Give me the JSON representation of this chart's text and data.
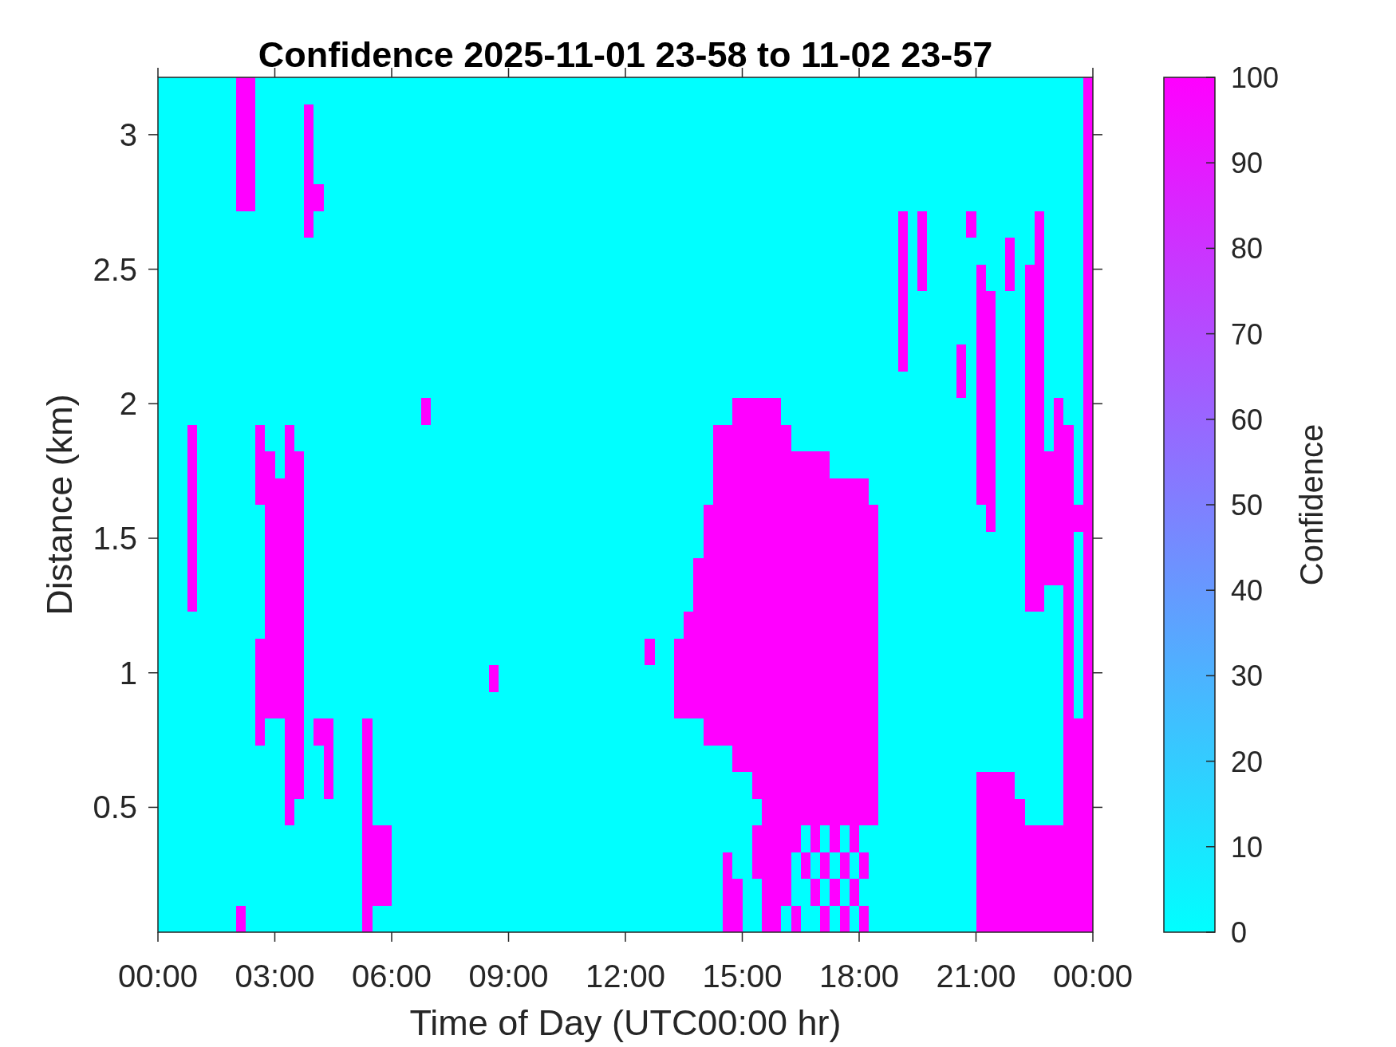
{
  "chart_data": {
    "type": "heatmap",
    "title": "Confidence 2025-11-01 23-58 to 11-02 23-57",
    "xlabel": "Time of Day (UTC00:00 hr)",
    "ylabel": "Distance (km)",
    "clabel": "Confidence",
    "x": [
      0.125,
      0.375,
      0.625,
      0.875,
      1.125,
      1.375,
      1.625,
      1.875,
      2.125,
      2.375,
      2.625,
      2.875,
      3.125,
      3.375,
      3.625,
      3.875,
      4.125,
      4.375,
      4.625,
      4.875,
      5.125,
      5.375,
      5.625,
      5.875,
      6.125,
      6.375,
      6.625,
      6.875,
      7.125,
      7.375,
      7.625,
      7.875,
      8.125,
      8.375,
      8.625,
      8.875,
      9.125,
      9.375,
      9.625,
      9.875,
      10.125,
      10.375,
      10.625,
      10.875,
      11.125,
      11.375,
      11.625,
      11.875,
      12.125,
      12.375,
      12.625,
      12.875,
      13.125,
      13.375,
      13.625,
      13.875,
      14.125,
      14.375,
      14.625,
      14.875,
      15.125,
      15.375,
      15.625,
      15.875,
      16.125,
      16.375,
      16.625,
      16.875,
      17.125,
      17.375,
      17.625,
      17.875,
      18.125,
      18.375,
      18.625,
      18.875,
      19.125,
      19.375,
      19.625,
      19.875,
      20.125,
      20.375,
      20.625,
      20.875,
      21.125,
      21.375,
      21.625,
      21.875,
      22.125,
      22.375,
      22.625,
      22.875,
      23.125,
      23.375,
      23.625,
      23.875
    ],
    "cells": [
      [
        0,
        0,
        0,
        0,
        0,
        0,
        0,
        0,
        100,
        100,
        0,
        0,
        0,
        0,
        0,
        0,
        0,
        0,
        0,
        0,
        0,
        0,
        0,
        0,
        0,
        0,
        0,
        0,
        0,
        0,
        0,
        0,
        0,
        0,
        0,
        0,
        0,
        0,
        0,
        0,
        0,
        0,
        0,
        0,
        0,
        0,
        0,
        0,
        0,
        0,
        0,
        0,
        0,
        0,
        0,
        0,
        0,
        0,
        0,
        0,
        0,
        0,
        0,
        0,
        0,
        0,
        0,
        0,
        0,
        0,
        0,
        0,
        0,
        0,
        0,
        0,
        0,
        0,
        0,
        0,
        0,
        0,
        0,
        0,
        0,
        0,
        0,
        0,
        0,
        0,
        0,
        0,
        0,
        0,
        0,
        100
      ],
      [
        0,
        0,
        0,
        0,
        0,
        0,
        0,
        0,
        100,
        100,
        0,
        0,
        0,
        0,
        0,
        100,
        0,
        0,
        0,
        0,
        0,
        0,
        0,
        0,
        0,
        0,
        0,
        0,
        0,
        0,
        0,
        0,
        0,
        0,
        0,
        0,
        0,
        0,
        0,
        0,
        0,
        0,
        0,
        0,
        0,
        0,
        0,
        0,
        0,
        0,
        0,
        0,
        0,
        0,
        0,
        0,
        0,
        0,
        0,
        0,
        0,
        0,
        0,
        0,
        0,
        0,
        0,
        0,
        0,
        0,
        0,
        0,
        0,
        0,
        0,
        0,
        0,
        0,
        0,
        0,
        0,
        0,
        0,
        0,
        0,
        0,
        0,
        0,
        0,
        0,
        0,
        0,
        0,
        0,
        0,
        100
      ],
      [
        0,
        0,
        0,
        0,
        0,
        0,
        0,
        0,
        100,
        100,
        0,
        0,
        0,
        0,
        0,
        100,
        0,
        0,
        0,
        0,
        0,
        0,
        0,
        0,
        0,
        0,
        0,
        0,
        0,
        0,
        0,
        0,
        0,
        0,
        0,
        0,
        0,
        0,
        0,
        0,
        0,
        0,
        0,
        0,
        0,
        0,
        0,
        0,
        0,
        0,
        0,
        0,
        0,
        0,
        0,
        0,
        0,
        0,
        0,
        0,
        0,
        0,
        0,
        0,
        0,
        0,
        0,
        0,
        0,
        0,
        0,
        0,
        0,
        0,
        0,
        0,
        0,
        0,
        0,
        0,
        0,
        0,
        0,
        0,
        0,
        0,
        0,
        0,
        0,
        0,
        0,
        0,
        0,
        0,
        0,
        100
      ],
      [
        0,
        0,
        0,
        0,
        0,
        0,
        0,
        0,
        100,
        100,
        0,
        0,
        0,
        0,
        0,
        100,
        0,
        0,
        0,
        0,
        0,
        0,
        0,
        0,
        0,
        0,
        0,
        0,
        0,
        0,
        0,
        0,
        0,
        0,
        0,
        0,
        0,
        0,
        0,
        0,
        0,
        0,
        0,
        0,
        0,
        0,
        0,
        0,
        0,
        0,
        0,
        0,
        0,
        0,
        0,
        0,
        0,
        0,
        0,
        0,
        0,
        0,
        0,
        0,
        0,
        0,
        0,
        0,
        0,
        0,
        0,
        0,
        0,
        0,
        0,
        0,
        0,
        0,
        0,
        0,
        0,
        0,
        0,
        0,
        0,
        0,
        0,
        0,
        0,
        0,
        0,
        0,
        0,
        0,
        0,
        100
      ],
      [
        0,
        0,
        0,
        0,
        0,
        0,
        0,
        0,
        100,
        100,
        0,
        0,
        0,
        0,
        0,
        100,
        100,
        0,
        0,
        0,
        0,
        0,
        0,
        0,
        0,
        0,
        0,
        0,
        0,
        0,
        0,
        0,
        0,
        0,
        0,
        0,
        0,
        0,
        0,
        0,
        0,
        0,
        0,
        0,
        0,
        0,
        0,
        0,
        0,
        0,
        0,
        0,
        0,
        0,
        0,
        0,
        0,
        0,
        0,
        0,
        0,
        0,
        0,
        0,
        0,
        0,
        0,
        0,
        0,
        0,
        0,
        0,
        0,
        0,
        0,
        0,
        0,
        0,
        0,
        0,
        0,
        0,
        0,
        0,
        0,
        0,
        0,
        0,
        0,
        0,
        0,
        0,
        0,
        0,
        0,
        100
      ],
      [
        0,
        0,
        0,
        0,
        0,
        0,
        0,
        0,
        0,
        0,
        0,
        0,
        0,
        0,
        0,
        100,
        0,
        0,
        0,
        0,
        0,
        0,
        0,
        0,
        0,
        0,
        0,
        0,
        0,
        0,
        0,
        0,
        0,
        0,
        0,
        0,
        0,
        0,
        0,
        0,
        0,
        0,
        0,
        0,
        0,
        0,
        0,
        0,
        0,
        0,
        0,
        0,
        0,
        0,
        0,
        0,
        0,
        0,
        0,
        0,
        0,
        0,
        0,
        0,
        0,
        0,
        0,
        0,
        0,
        0,
        0,
        0,
        0,
        0,
        0,
        0,
        100,
        0,
        100,
        0,
        0,
        0,
        0,
        100,
        0,
        0,
        0,
        0,
        0,
        0,
        100,
        0,
        0,
        0,
        0,
        100
      ],
      [
        0,
        0,
        0,
        0,
        0,
        0,
        0,
        0,
        0,
        0,
        0,
        0,
        0,
        0,
        0,
        0,
        0,
        0,
        0,
        0,
        0,
        0,
        0,
        0,
        0,
        0,
        0,
        0,
        0,
        0,
        0,
        0,
        0,
        0,
        0,
        0,
        0,
        0,
        0,
        0,
        0,
        0,
        0,
        0,
        0,
        0,
        0,
        0,
        0,
        0,
        0,
        0,
        0,
        0,
        0,
        0,
        0,
        0,
        0,
        0,
        0,
        0,
        0,
        0,
        0,
        0,
        0,
        0,
        0,
        0,
        0,
        0,
        0,
        0,
        0,
        0,
        100,
        0,
        100,
        0,
        0,
        0,
        0,
        0,
        0,
        0,
        0,
        100,
        0,
        0,
        100,
        0,
        0,
        0,
        0,
        100
      ],
      [
        0,
        0,
        0,
        0,
        0,
        0,
        0,
        0,
        0,
        0,
        0,
        0,
        0,
        0,
        0,
        0,
        0,
        0,
        0,
        0,
        0,
        0,
        0,
        0,
        0,
        0,
        0,
        0,
        0,
        0,
        0,
        0,
        0,
        0,
        0,
        0,
        0,
        0,
        0,
        0,
        0,
        0,
        0,
        0,
        0,
        0,
        0,
        0,
        0,
        0,
        0,
        0,
        0,
        0,
        0,
        0,
        0,
        0,
        0,
        0,
        0,
        0,
        0,
        0,
        0,
        0,
        0,
        0,
        0,
        0,
        0,
        0,
        0,
        0,
        0,
        0,
        100,
        0,
        100,
        0,
        0,
        0,
        0,
        0,
        100,
        0,
        0,
        100,
        0,
        100,
        100,
        0,
        0,
        0,
        0,
        100
      ],
      [
        0,
        0,
        0,
        0,
        0,
        0,
        0,
        0,
        0,
        0,
        0,
        0,
        0,
        0,
        0,
        0,
        0,
        0,
        0,
        0,
        0,
        0,
        0,
        0,
        0,
        0,
        0,
        0,
        0,
        0,
        0,
        0,
        0,
        0,
        0,
        0,
        0,
        0,
        0,
        0,
        0,
        0,
        0,
        0,
        0,
        0,
        0,
        0,
        0,
        0,
        0,
        0,
        0,
        0,
        0,
        0,
        0,
        0,
        0,
        0,
        0,
        0,
        0,
        0,
        0,
        0,
        0,
        0,
        0,
        0,
        0,
        0,
        0,
        0,
        0,
        0,
        100,
        0,
        0,
        0,
        0,
        0,
        0,
        0,
        100,
        100,
        0,
        0,
        0,
        100,
        100,
        0,
        0,
        0,
        0,
        100
      ],
      [
        0,
        0,
        0,
        0,
        0,
        0,
        0,
        0,
        0,
        0,
        0,
        0,
        0,
        0,
        0,
        0,
        0,
        0,
        0,
        0,
        0,
        0,
        0,
        0,
        0,
        0,
        0,
        0,
        0,
        0,
        0,
        0,
        0,
        0,
        0,
        0,
        0,
        0,
        0,
        0,
        0,
        0,
        0,
        0,
        0,
        0,
        0,
        0,
        0,
        0,
        0,
        0,
        0,
        0,
        0,
        0,
        0,
        0,
        0,
        0,
        0,
        0,
        0,
        0,
        0,
        0,
        0,
        0,
        0,
        0,
        0,
        0,
        0,
        0,
        0,
        0,
        100,
        0,
        0,
        0,
        0,
        0,
        0,
        0,
        100,
        100,
        0,
        0,
        0,
        100,
        100,
        0,
        0,
        0,
        0,
        100
      ],
      [
        0,
        0,
        0,
        0,
        0,
        0,
        0,
        0,
        0,
        0,
        0,
        0,
        0,
        0,
        0,
        0,
        0,
        0,
        0,
        0,
        0,
        0,
        0,
        0,
        0,
        0,
        0,
        0,
        0,
        0,
        0,
        0,
        0,
        0,
        0,
        0,
        0,
        0,
        0,
        0,
        0,
        0,
        0,
        0,
        0,
        0,
        0,
        0,
        0,
        0,
        0,
        0,
        0,
        0,
        0,
        0,
        0,
        0,
        0,
        0,
        0,
        0,
        0,
        0,
        0,
        0,
        0,
        0,
        0,
        0,
        0,
        0,
        0,
        0,
        0,
        0,
        100,
        0,
        0,
        0,
        0,
        0,
        100,
        0,
        100,
        100,
        0,
        0,
        0,
        100,
        100,
        0,
        0,
        0,
        0,
        100
      ],
      [
        0,
        0,
        0,
        0,
        0,
        0,
        0,
        0,
        0,
        0,
        0,
        0,
        0,
        0,
        0,
        0,
        0,
        0,
        0,
        0,
        0,
        0,
        0,
        0,
        0,
        0,
        0,
        0,
        0,
        0,
        0,
        0,
        0,
        0,
        0,
        0,
        0,
        0,
        0,
        0,
        0,
        0,
        0,
        0,
        0,
        0,
        0,
        0,
        0,
        0,
        0,
        0,
        0,
        0,
        0,
        0,
        0,
        0,
        0,
        0,
        0,
        0,
        0,
        0,
        0,
        0,
        0,
        0,
        0,
        0,
        0,
        0,
        0,
        0,
        0,
        0,
        0,
        0,
        0,
        0,
        0,
        0,
        100,
        0,
        100,
        100,
        0,
        0,
        0,
        100,
        100,
        0,
        0,
        0,
        0,
        100
      ],
      [
        0,
        0,
        0,
        0,
        0,
        0,
        0,
        0,
        0,
        0,
        0,
        0,
        0,
        0,
        0,
        0,
        0,
        0,
        0,
        0,
        0,
        0,
        0,
        0,
        0,
        0,
        0,
        100,
        0,
        0,
        0,
        0,
        0,
        0,
        0,
        0,
        0,
        0,
        0,
        0,
        0,
        0,
        0,
        0,
        0,
        0,
        0,
        0,
        0,
        0,
        0,
        0,
        0,
        0,
        0,
        0,
        0,
        0,
        0,
        100,
        100,
        100,
        100,
        100,
        0,
        0,
        0,
        0,
        0,
        0,
        0,
        0,
        0,
        0,
        0,
        0,
        0,
        0,
        0,
        0,
        0,
        0,
        0,
        0,
        100,
        100,
        0,
        0,
        0,
        100,
        100,
        0,
        100,
        0,
        0,
        100
      ],
      [
        0,
        0,
        0,
        100,
        0,
        0,
        0,
        0,
        0,
        0,
        100,
        0,
        0,
        100,
        0,
        0,
        0,
        0,
        0,
        0,
        0,
        0,
        0,
        0,
        0,
        0,
        0,
        0,
        0,
        0,
        0,
        0,
        0,
        0,
        0,
        0,
        0,
        0,
        0,
        0,
        0,
        0,
        0,
        0,
        0,
        0,
        0,
        0,
        0,
        0,
        0,
        0,
        0,
        0,
        0,
        0,
        0,
        100,
        100,
        100,
        100,
        100,
        100,
        100,
        100,
        0,
        0,
        0,
        0,
        0,
        0,
        0,
        0,
        0,
        0,
        0,
        0,
        0,
        0,
        0,
        0,
        0,
        0,
        0,
        100,
        100,
        0,
        0,
        0,
        100,
        100,
        0,
        100,
        100,
        0,
        100
      ],
      [
        0,
        0,
        0,
        100,
        0,
        0,
        0,
        0,
        0,
        0,
        100,
        100,
        0,
        100,
        100,
        0,
        0,
        0,
        0,
        0,
        0,
        0,
        0,
        0,
        0,
        0,
        0,
        0,
        0,
        0,
        0,
        0,
        0,
        0,
        0,
        0,
        0,
        0,
        0,
        0,
        0,
        0,
        0,
        0,
        0,
        0,
        0,
        0,
        0,
        0,
        0,
        0,
        0,
        0,
        0,
        0,
        0,
        100,
        100,
        100,
        100,
        100,
        100,
        100,
        100,
        100,
        100,
        100,
        100,
        0,
        0,
        0,
        0,
        0,
        0,
        0,
        0,
        0,
        0,
        0,
        0,
        0,
        0,
        0,
        100,
        100,
        0,
        0,
        0,
        100,
        100,
        100,
        100,
        100,
        0,
        100
      ],
      [
        0,
        0,
        0,
        100,
        0,
        0,
        0,
        0,
        0,
        0,
        100,
        100,
        100,
        100,
        100,
        0,
        0,
        0,
        0,
        0,
        0,
        0,
        0,
        0,
        0,
        0,
        0,
        0,
        0,
        0,
        0,
        0,
        0,
        0,
        0,
        0,
        0,
        0,
        0,
        0,
        0,
        0,
        0,
        0,
        0,
        0,
        0,
        0,
        0,
        0,
        0,
        0,
        0,
        0,
        0,
        0,
        0,
        100,
        100,
        100,
        100,
        100,
        100,
        100,
        100,
        100,
        100,
        100,
        100,
        100,
        100,
        100,
        100,
        0,
        0,
        0,
        0,
        0,
        0,
        0,
        0,
        0,
        0,
        0,
        100,
        100,
        0,
        0,
        0,
        100,
        100,
        100,
        100,
        100,
        0,
        100
      ],
      [
        0,
        0,
        0,
        100,
        0,
        0,
        0,
        0,
        0,
        0,
        0,
        100,
        100,
        100,
        100,
        0,
        0,
        0,
        0,
        0,
        0,
        0,
        0,
        0,
        0,
        0,
        0,
        0,
        0,
        0,
        0,
        0,
        0,
        0,
        0,
        0,
        0,
        0,
        0,
        0,
        0,
        0,
        0,
        0,
        0,
        0,
        0,
        0,
        0,
        0,
        0,
        0,
        0,
        0,
        0,
        0,
        100,
        100,
        100,
        100,
        100,
        100,
        100,
        100,
        100,
        100,
        100,
        100,
        100,
        100,
        100,
        100,
        100,
        100,
        0,
        0,
        0,
        0,
        0,
        0,
        0,
        0,
        0,
        0,
        0,
        100,
        0,
        0,
        0,
        100,
        100,
        100,
        100,
        100,
        100,
        100
      ],
      [
        0,
        0,
        0,
        100,
        0,
        0,
        0,
        0,
        0,
        0,
        0,
        100,
        100,
        100,
        100,
        0,
        0,
        0,
        0,
        0,
        0,
        0,
        0,
        0,
        0,
        0,
        0,
        0,
        0,
        0,
        0,
        0,
        0,
        0,
        0,
        0,
        0,
        0,
        0,
        0,
        0,
        0,
        0,
        0,
        0,
        0,
        0,
        0,
        0,
        0,
        0,
        0,
        0,
        0,
        0,
        0,
        100,
        100,
        100,
        100,
        100,
        100,
        100,
        100,
        100,
        100,
        100,
        100,
        100,
        100,
        100,
        100,
        100,
        100,
        0,
        0,
        0,
        0,
        0,
        0,
        0,
        0,
        0,
        0,
        0,
        0,
        0,
        0,
        0,
        100,
        100,
        100,
        100,
        100,
        0,
        100
      ],
      [
        0,
        0,
        0,
        100,
        0,
        0,
        0,
        0,
        0,
        0,
        0,
        100,
        100,
        100,
        100,
        0,
        0,
        0,
        0,
        0,
        0,
        0,
        0,
        0,
        0,
        0,
        0,
        0,
        0,
        0,
        0,
        0,
        0,
        0,
        0,
        0,
        0,
        0,
        0,
        0,
        0,
        0,
        0,
        0,
        0,
        0,
        0,
        0,
        0,
        0,
        0,
        0,
        0,
        0,
        0,
        100,
        100,
        100,
        100,
        100,
        100,
        100,
        100,
        100,
        100,
        100,
        100,
        100,
        100,
        100,
        100,
        100,
        100,
        100,
        0,
        0,
        0,
        0,
        0,
        0,
        0,
        0,
        0,
        0,
        0,
        0,
        0,
        0,
        0,
        100,
        100,
        100,
        100,
        100,
        0,
        100
      ],
      [
        0,
        0,
        0,
        100,
        0,
        0,
        0,
        0,
        0,
        0,
        0,
        100,
        100,
        100,
        100,
        0,
        0,
        0,
        0,
        0,
        0,
        0,
        0,
        0,
        0,
        0,
        0,
        0,
        0,
        0,
        0,
        0,
        0,
        0,
        0,
        0,
        0,
        0,
        0,
        0,
        0,
        0,
        0,
        0,
        0,
        0,
        0,
        0,
        0,
        0,
        0,
        0,
        0,
        0,
        0,
        100,
        100,
        100,
        100,
        100,
        100,
        100,
        100,
        100,
        100,
        100,
        100,
        100,
        100,
        100,
        100,
        100,
        100,
        100,
        0,
        0,
        0,
        0,
        0,
        0,
        0,
        0,
        0,
        0,
        0,
        0,
        0,
        0,
        0,
        100,
        100,
        0,
        0,
        100,
        0,
        100
      ],
      [
        0,
        0,
        0,
        0,
        0,
        0,
        0,
        0,
        0,
        0,
        0,
        100,
        100,
        100,
        100,
        0,
        0,
        0,
        0,
        0,
        0,
        0,
        0,
        0,
        0,
        0,
        0,
        0,
        0,
        0,
        0,
        0,
        0,
        0,
        0,
        0,
        0,
        0,
        0,
        0,
        0,
        0,
        0,
        0,
        0,
        0,
        0,
        0,
        0,
        0,
        0,
        0,
        0,
        0,
        100,
        100,
        100,
        100,
        100,
        100,
        100,
        100,
        100,
        100,
        100,
        100,
        100,
        100,
        100,
        100,
        100,
        100,
        100,
        100,
        0,
        0,
        0,
        0,
        0,
        0,
        0,
        0,
        0,
        0,
        0,
        0,
        0,
        0,
        0,
        0,
        0,
        0,
        0,
        100,
        0,
        100
      ],
      [
        0,
        0,
        0,
        0,
        0,
        0,
        0,
        0,
        0,
        0,
        100,
        100,
        100,
        100,
        100,
        0,
        0,
        0,
        0,
        0,
        0,
        0,
        0,
        0,
        0,
        0,
        0,
        0,
        0,
        0,
        0,
        0,
        0,
        0,
        0,
        0,
        0,
        0,
        0,
        0,
        0,
        0,
        0,
        0,
        0,
        0,
        0,
        0,
        0,
        0,
        100,
        0,
        0,
        100,
        100,
        100,
        100,
        100,
        100,
        100,
        100,
        100,
        100,
        100,
        100,
        100,
        100,
        100,
        100,
        100,
        100,
        100,
        100,
        100,
        0,
        0,
        0,
        0,
        0,
        0,
        0,
        0,
        0,
        0,
        0,
        0,
        0,
        0,
        0,
        0,
        0,
        0,
        0,
        100,
        0,
        100
      ],
      [
        0,
        0,
        0,
        0,
        0,
        0,
        0,
        0,
        0,
        0,
        100,
        100,
        100,
        100,
        100,
        0,
        0,
        0,
        0,
        0,
        0,
        0,
        0,
        0,
        0,
        0,
        0,
        0,
        0,
        0,
        0,
        0,
        0,
        0,
        100,
        0,
        0,
        0,
        0,
        0,
        0,
        0,
        0,
        0,
        0,
        0,
        0,
        0,
        0,
        0,
        0,
        0,
        0,
        100,
        100,
        100,
        100,
        100,
        100,
        100,
        100,
        100,
        100,
        100,
        100,
        100,
        100,
        100,
        100,
        100,
        100,
        100,
        100,
        100,
        0,
        0,
        0,
        0,
        0,
        0,
        0,
        0,
        0,
        0,
        0,
        0,
        0,
        0,
        0,
        0,
        0,
        0,
        0,
        100,
        0,
        100
      ],
      [
        0,
        0,
        0,
        0,
        0,
        0,
        0,
        0,
        0,
        0,
        100,
        100,
        100,
        100,
        100,
        0,
        0,
        0,
        0,
        0,
        0,
        0,
        0,
        0,
        0,
        0,
        0,
        0,
        0,
        0,
        0,
        0,
        0,
        0,
        0,
        0,
        0,
        0,
        0,
        0,
        0,
        0,
        0,
        0,
        0,
        0,
        0,
        0,
        0,
        0,
        0,
        0,
        0,
        100,
        100,
        100,
        100,
        100,
        100,
        100,
        100,
        100,
        100,
        100,
        100,
        100,
        100,
        100,
        100,
        100,
        100,
        100,
        100,
        100,
        0,
        0,
        0,
        0,
        0,
        0,
        0,
        0,
        0,
        0,
        0,
        0,
        0,
        0,
        0,
        0,
        0,
        0,
        0,
        100,
        0,
        100
      ],
      [
        0,
        0,
        0,
        0,
        0,
        0,
        0,
        0,
        0,
        0,
        100,
        0,
        0,
        100,
        100,
        0,
        100,
        100,
        0,
        0,
        0,
        100,
        0,
        0,
        0,
        0,
        0,
        0,
        0,
        0,
        0,
        0,
        0,
        0,
        0,
        0,
        0,
        0,
        0,
        0,
        0,
        0,
        0,
        0,
        0,
        0,
        0,
        0,
        0,
        0,
        0,
        0,
        0,
        0,
        0,
        0,
        100,
        100,
        100,
        100,
        100,
        100,
        100,
        100,
        100,
        100,
        100,
        100,
        100,
        100,
        100,
        100,
        100,
        100,
        0,
        0,
        0,
        0,
        0,
        0,
        0,
        0,
        0,
        0,
        0,
        0,
        0,
        0,
        0,
        0,
        0,
        0,
        0,
        100,
        100,
        100
      ],
      [
        0,
        0,
        0,
        0,
        0,
        0,
        0,
        0,
        0,
        0,
        0,
        0,
        0,
        100,
        100,
        0,
        0,
        100,
        0,
        0,
        0,
        100,
        0,
        0,
        0,
        0,
        0,
        0,
        0,
        0,
        0,
        0,
        0,
        0,
        0,
        0,
        0,
        0,
        0,
        0,
        0,
        0,
        0,
        0,
        0,
        0,
        0,
        0,
        0,
        0,
        0,
        0,
        0,
        0,
        0,
        0,
        0,
        0,
        0,
        100,
        100,
        100,
        100,
        100,
        100,
        100,
        100,
        100,
        100,
        100,
        100,
        100,
        100,
        100,
        0,
        0,
        0,
        0,
        0,
        0,
        0,
        0,
        0,
        0,
        0,
        0,
        0,
        0,
        0,
        0,
        0,
        0,
        0,
        100,
        100,
        100
      ],
      [
        0,
        0,
        0,
        0,
        0,
        0,
        0,
        0,
        0,
        0,
        0,
        0,
        0,
        100,
        100,
        0,
        0,
        100,
        0,
        0,
        0,
        100,
        0,
        0,
        0,
        0,
        0,
        0,
        0,
        0,
        0,
        0,
        0,
        0,
        0,
        0,
        0,
        0,
        0,
        0,
        0,
        0,
        0,
        0,
        0,
        0,
        0,
        0,
        0,
        0,
        0,
        0,
        0,
        0,
        0,
        0,
        0,
        0,
        0,
        0,
        0,
        100,
        100,
        100,
        100,
        100,
        100,
        100,
        100,
        100,
        100,
        100,
        100,
        100,
        0,
        0,
        0,
        0,
        0,
        0,
        0,
        0,
        0,
        0,
        100,
        100,
        100,
        100,
        0,
        0,
        0,
        0,
        0,
        100,
        100,
        100
      ],
      [
        0,
        0,
        0,
        0,
        0,
        0,
        0,
        0,
        0,
        0,
        0,
        0,
        0,
        100,
        0,
        0,
        0,
        0,
        0,
        0,
        0,
        100,
        0,
        0,
        0,
        0,
        0,
        0,
        0,
        0,
        0,
        0,
        0,
        0,
        0,
        0,
        0,
        0,
        0,
        0,
        0,
        0,
        0,
        0,
        0,
        0,
        0,
        0,
        0,
        0,
        0,
        0,
        0,
        0,
        0,
        0,
        0,
        0,
        0,
        0,
        0,
        0,
        100,
        100,
        100,
        100,
        100,
        100,
        100,
        100,
        100,
        100,
        100,
        100,
        0,
        0,
        0,
        0,
        0,
        0,
        0,
        0,
        0,
        0,
        100,
        100,
        100,
        100,
        100,
        0,
        0,
        0,
        0,
        100,
        100,
        100
      ],
      [
        0,
        0,
        0,
        0,
        0,
        0,
        0,
        0,
        0,
        0,
        0,
        0,
        0,
        0,
        0,
        0,
        0,
        0,
        0,
        0,
        0,
        100,
        100,
        100,
        0,
        0,
        0,
        0,
        0,
        0,
        0,
        0,
        0,
        0,
        0,
        0,
        0,
        0,
        0,
        0,
        0,
        0,
        0,
        0,
        0,
        0,
        0,
        0,
        0,
        0,
        0,
        0,
        0,
        0,
        0,
        0,
        0,
        0,
        0,
        0,
        0,
        100,
        100,
        100,
        100,
        100,
        0,
        100,
        0,
        100,
        0,
        100,
        0,
        0,
        0,
        0,
        0,
        0,
        0,
        0,
        0,
        0,
        0,
        0,
        100,
        100,
        100,
        100,
        100,
        100,
        100,
        100,
        100,
        100,
        100,
        100
      ],
      [
        0,
        0,
        0,
        0,
        0,
        0,
        0,
        0,
        0,
        0,
        0,
        0,
        0,
        0,
        0,
        0,
        0,
        0,
        0,
        0,
        0,
        100,
        100,
        100,
        0,
        0,
        0,
        0,
        0,
        0,
        0,
        0,
        0,
        0,
        0,
        0,
        0,
        0,
        0,
        0,
        0,
        0,
        0,
        0,
        0,
        0,
        0,
        0,
        0,
        0,
        0,
        0,
        0,
        0,
        0,
        0,
        0,
        0,
        100,
        0,
        0,
        100,
        100,
        100,
        100,
        0,
        100,
        0,
        100,
        0,
        100,
        0,
        100,
        0,
        0,
        0,
        0,
        0,
        0,
        0,
        0,
        0,
        0,
        0,
        100,
        100,
        100,
        100,
        100,
        100,
        100,
        100,
        100,
        100,
        100,
        100
      ],
      [
        0,
        0,
        0,
        0,
        0,
        0,
        0,
        0,
        0,
        0,
        0,
        0,
        0,
        0,
        0,
        0,
        0,
        0,
        0,
        0,
        0,
        100,
        100,
        100,
        0,
        0,
        0,
        0,
        0,
        0,
        0,
        0,
        0,
        0,
        0,
        0,
        0,
        0,
        0,
        0,
        0,
        0,
        0,
        0,
        0,
        0,
        0,
        0,
        0,
        0,
        0,
        0,
        0,
        0,
        0,
        0,
        0,
        0,
        100,
        100,
        0,
        0,
        100,
        100,
        100,
        0,
        0,
        100,
        0,
        100,
        0,
        100,
        0,
        0,
        0,
        0,
        0,
        0,
        0,
        0,
        0,
        0,
        0,
        0,
        100,
        100,
        100,
        100,
        100,
        100,
        100,
        100,
        100,
        100,
        100,
        100
      ],
      [
        0,
        0,
        0,
        0,
        0,
        0,
        0,
        0,
        100,
        0,
        0,
        0,
        0,
        0,
        0,
        0,
        0,
        0,
        0,
        0,
        0,
        100,
        0,
        0,
        0,
        0,
        0,
        0,
        0,
        0,
        0,
        0,
        0,
        0,
        0,
        0,
        0,
        0,
        0,
        0,
        0,
        0,
        0,
        0,
        0,
        0,
        0,
        0,
        0,
        0,
        0,
        0,
        0,
        0,
        0,
        0,
        0,
        0,
        100,
        100,
        0,
        0,
        100,
        100,
        0,
        100,
        0,
        0,
        100,
        0,
        100,
        0,
        100,
        0,
        0,
        0,
        0,
        0,
        0,
        0,
        0,
        0,
        0,
        0,
        100,
        100,
        100,
        100,
        100,
        100,
        100,
        100,
        100,
        100,
        100,
        100
      ]
    ],
    "xlim": [
      0,
      24
    ],
    "xticks": [
      {
        "value": 0,
        "label": "00:00"
      },
      {
        "value": 3,
        "label": "03:00"
      },
      {
        "value": 6,
        "label": "06:00"
      },
      {
        "value": 9,
        "label": "09:00"
      },
      {
        "value": 12,
        "label": "12:00"
      },
      {
        "value": 15,
        "label": "15:00"
      },
      {
        "value": 18,
        "label": "18:00"
      },
      {
        "value": 21,
        "label": "21:00"
      },
      {
        "value": 24,
        "label": "00:00"
      }
    ],
    "ylim": [
      0.036,
      3.213
    ],
    "yticks": [
      0.5,
      1,
      1.5,
      2,
      2.5,
      3
    ],
    "clim": [
      0,
      100
    ],
    "cticks": [
      0,
      10,
      20,
      30,
      40,
      50,
      60,
      70,
      80,
      90,
      100
    ]
  }
}
